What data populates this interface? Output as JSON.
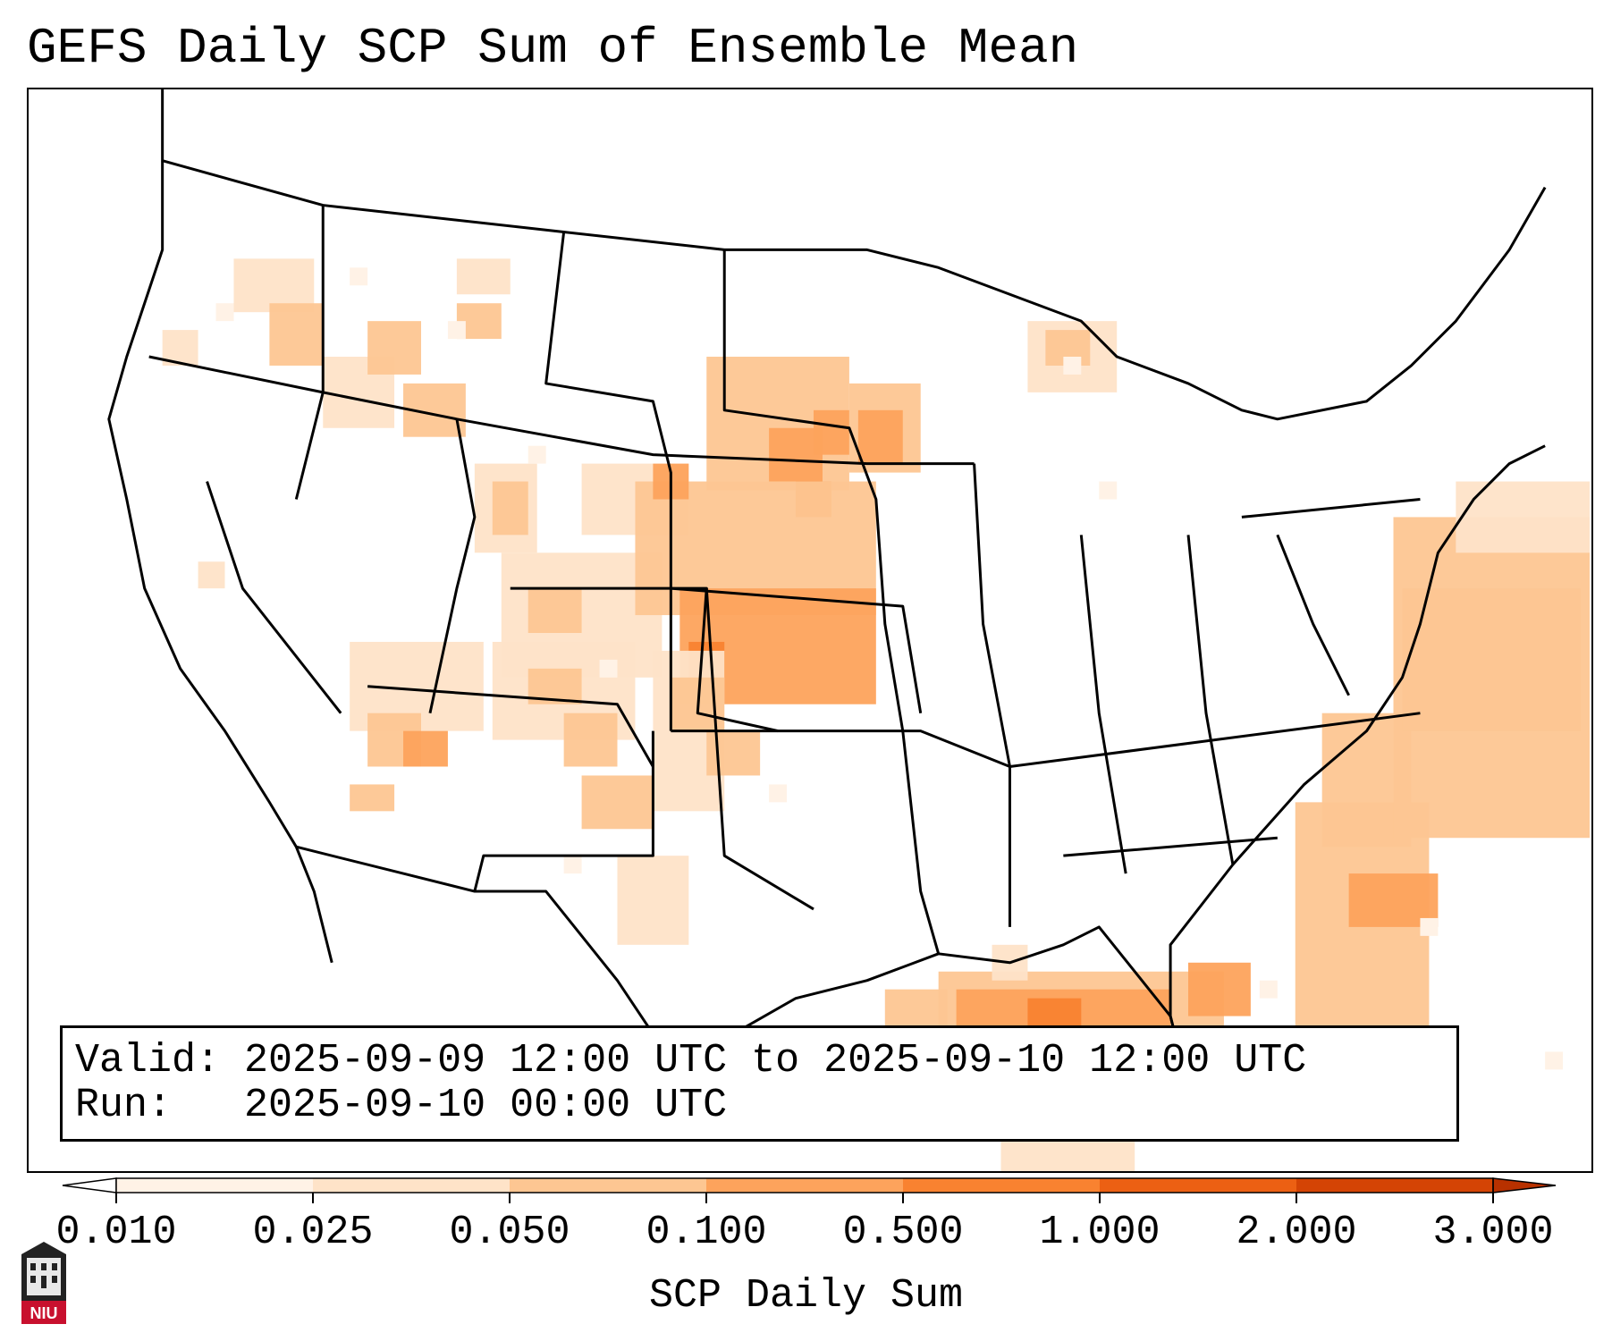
{
  "title": "GEFS Daily SCP Sum of Ensemble Mean",
  "info": {
    "valid_line": "Valid: 2025-09-09 12:00 UTC to 2025-09-10 12:00 UTC",
    "run_line": "Run:   2025-09-10 00:00 UTC"
  },
  "colorbar": {
    "label": "SCP Daily Sum",
    "ticks": [
      "0.010",
      "0.025",
      "0.050",
      "0.100",
      "0.500",
      "1.000",
      "2.000",
      "3.000"
    ],
    "colors": [
      "#fff2e6",
      "#fee3c8",
      "#fdc692",
      "#fda35c",
      "#f98230",
      "#ec6013",
      "#d44405",
      "#b83100"
    ],
    "extend": "both"
  },
  "logo": {
    "text": "NIU"
  },
  "map": {
    "projection": "lambert-conformal",
    "region": "CONUS",
    "field": "SCP daily sum (shaded)",
    "boundaries": [
      "coastlines",
      "states",
      "countries"
    ]
  }
}
